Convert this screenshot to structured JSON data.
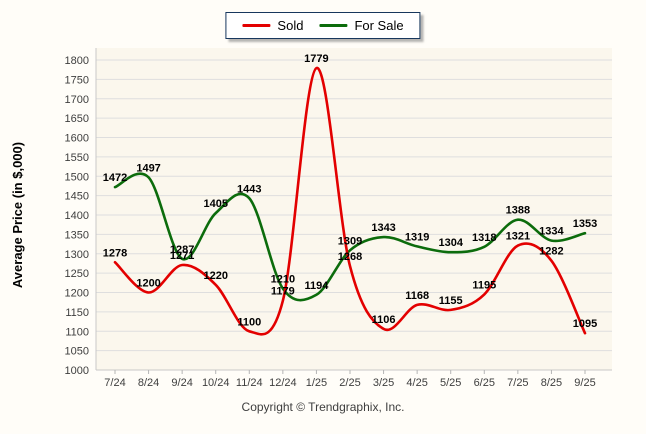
{
  "chart_data": {
    "type": "line",
    "title": "",
    "categories": [
      "7/24",
      "8/24",
      "9/24",
      "10/24",
      "11/24",
      "12/24",
      "1/25",
      "2/25",
      "3/25",
      "4/25",
      "5/25",
      "6/25",
      "7/25",
      "8/25",
      "9/25"
    ],
    "series": [
      {
        "name": "Sold",
        "color": "#e30000",
        "values": [
          1278,
          1200,
          1271,
          1220,
          1100,
          1179,
          1779,
          1268,
          1106,
          1168,
          1155,
          1195,
          1321,
          1282,
          1095
        ]
      },
      {
        "name": "For Sale",
        "color": "#0c6c0c",
        "values": [
          1472,
          1497,
          1287,
          1405,
          1443,
          1210,
          1194,
          1309,
          1343,
          1319,
          1304,
          1318,
          1388,
          1334,
          1353
        ]
      }
    ],
    "xlabel": "",
    "ylabel": "Average Price (in $,000)",
    "ylim": [
      1000,
      1800
    ],
    "ytick_step": 50,
    "ytick_labels": [
      "1000",
      "1050",
      "1100",
      "1150",
      "1200",
      "1250",
      "1300",
      "1350",
      "1400",
      "1450",
      "1500",
      "1550",
      "1600",
      "1650",
      "1700",
      "1750",
      "1800"
    ],
    "grid": true,
    "point_labels": true,
    "legend_position": "top-center"
  },
  "colors": {
    "plot_bg": "#fbf7ed",
    "gridline": "#dedede",
    "axis_line": "#c8c8c8",
    "tick": "#b5b5b5",
    "axis_text": "#3e3e3e",
    "value_label": "#000000",
    "legend_border": "#17375d"
  },
  "footer": {
    "copyright": "Copyright © Trendgraphix, Inc."
  }
}
